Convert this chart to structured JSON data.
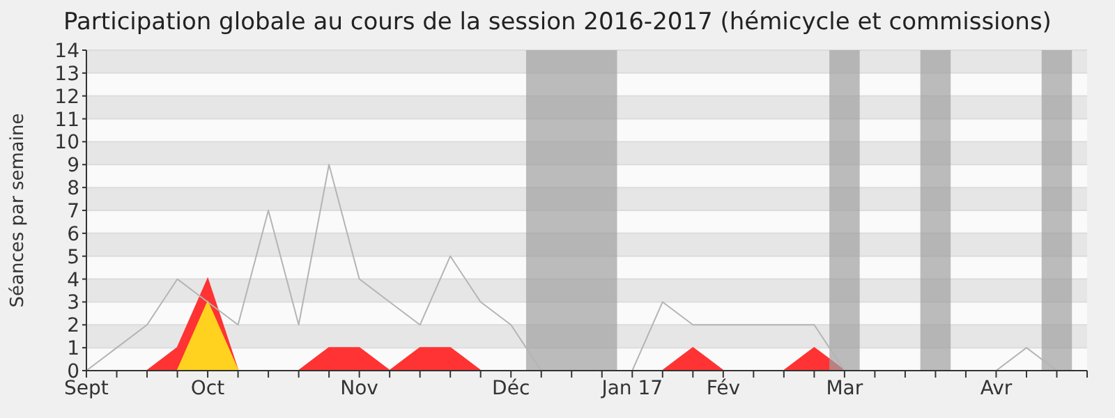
{
  "chart_data": {
    "type": "area",
    "title": "Participation globale au cours de la session 2016-2017 (hémicycle et commissions)",
    "ylabel": "Séances par semaine",
    "categories": [
      "Sept",
      null,
      null,
      null,
      "Oct",
      null,
      null,
      null,
      null,
      "Nov",
      null,
      null,
      null,
      null,
      "Déc",
      null,
      null,
      null,
      "Jan 17",
      null,
      null,
      "Fév",
      null,
      null,
      null,
      "Mar",
      null,
      null,
      null,
      null,
      "Avr",
      null,
      null,
      null
    ],
    "series": [
      {
        "type": "line",
        "color": "#b4b4b4",
        "values": [
          0,
          1,
          2,
          4,
          3,
          2,
          7,
          2,
          9,
          4,
          3,
          2,
          5,
          3,
          2,
          0,
          0,
          0,
          0,
          3,
          2,
          2,
          2,
          2,
          2,
          0,
          0,
          0,
          0,
          0,
          0,
          1,
          0,
          null
        ]
      },
      {
        "color": "#ff3333",
        "values": [
          0,
          0,
          0,
          1,
          4,
          0,
          0,
          0,
          1,
          1,
          0,
          1,
          1,
          0,
          0,
          0,
          0,
          0,
          0,
          0,
          1,
          0,
          0,
          0,
          1,
          0,
          0,
          0,
          0,
          0,
          0,
          0,
          0,
          0
        ]
      },
      {
        "color": "#ffd21f",
        "values": [
          0,
          0,
          0,
          0,
          3,
          0,
          0,
          0,
          0,
          0,
          0,
          0,
          0,
          0,
          0,
          0,
          0,
          0,
          0,
          0,
          0,
          0,
          0,
          0,
          0,
          0,
          0,
          0,
          0,
          0,
          0,
          0,
          0,
          0
        ]
      }
    ],
    "ylim": [
      0,
      14
    ],
    "yticks": [
      0,
      1,
      2,
      3,
      4,
      5,
      6,
      7,
      8,
      9,
      10,
      11,
      12,
      13,
      14
    ],
    "grid": "y",
    "legend": false
  }
}
